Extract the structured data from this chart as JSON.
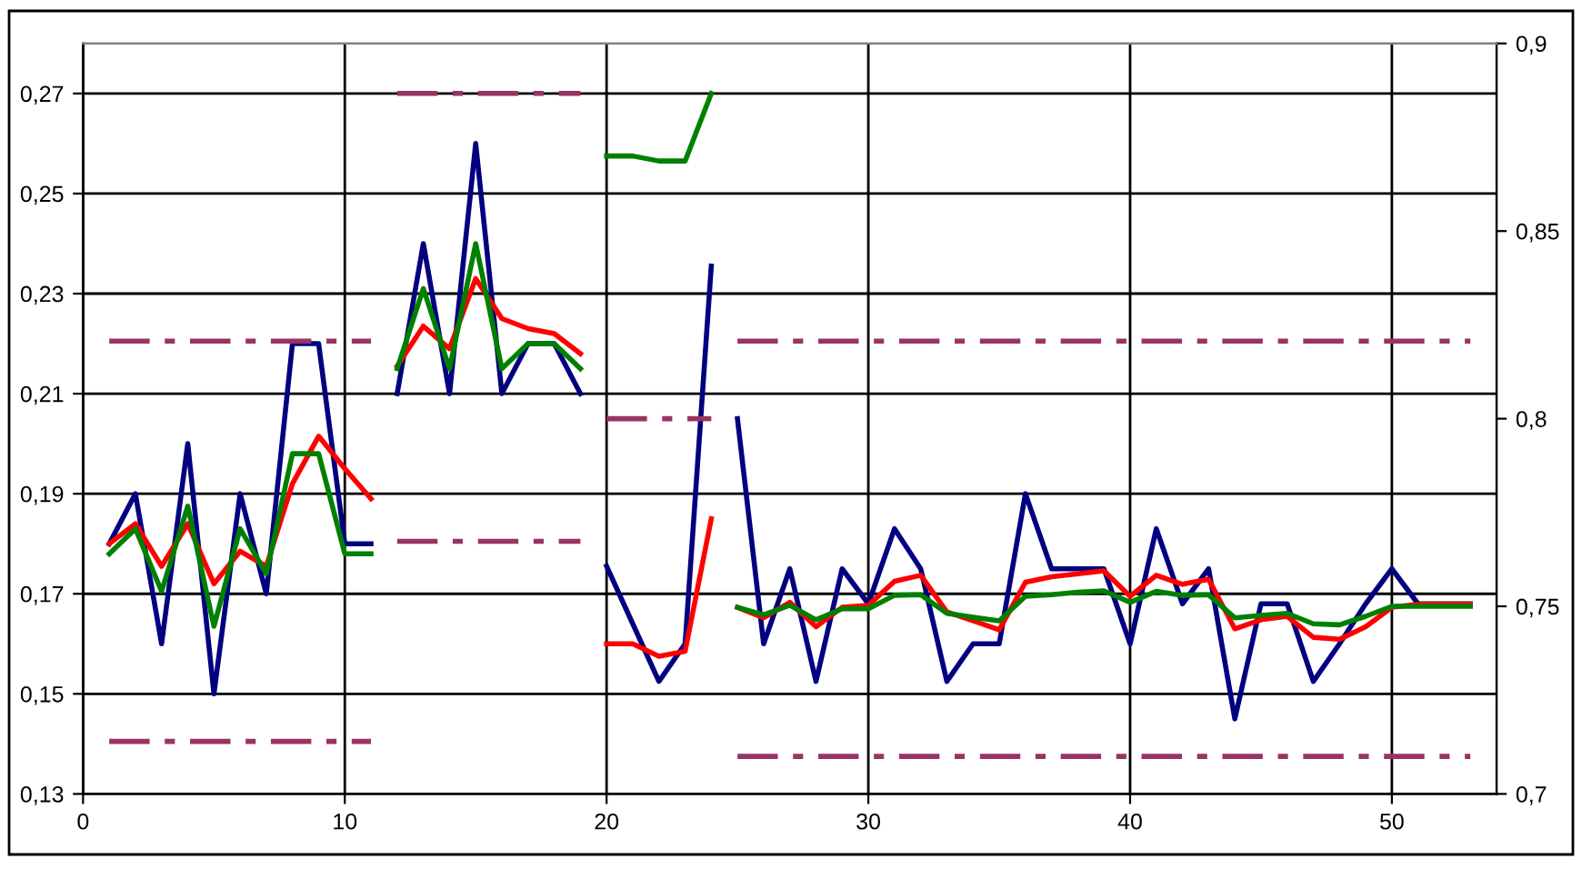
{
  "chart_data": {
    "type": "line",
    "xlim": [
      0,
      54
    ],
    "xticks": [
      0,
      10,
      20,
      30,
      40,
      50
    ],
    "ylim": [
      0.13,
      0.28
    ],
    "yticks": [
      {
        "value": 0.13,
        "label": "0,13"
      },
      {
        "value": 0.15,
        "label": "0,15"
      },
      {
        "value": 0.17,
        "label": "0,17"
      },
      {
        "value": 0.19,
        "label": "0,19"
      },
      {
        "value": 0.21,
        "label": "0,21"
      },
      {
        "value": 0.23,
        "label": "0,23"
      },
      {
        "value": 0.25,
        "label": "0,25"
      },
      {
        "value": 0.27,
        "label": "0,27"
      }
    ],
    "y2lim": [
      0.7,
      0.9
    ],
    "y2ticks": [
      {
        "value": 0.7,
        "label": "0,7"
      },
      {
        "value": 0.75,
        "label": "0,75"
      },
      {
        "value": 0.8,
        "label": "0,8"
      },
      {
        "value": 0.85,
        "label": "0,85"
      },
      {
        "value": 0.9,
        "label": "0,9"
      }
    ],
    "grid": true,
    "legend": false,
    "marker": "none",
    "series": [
      {
        "color": "#000080",
        "x": [
          1,
          2,
          3,
          4,
          5,
          6,
          7,
          8,
          9,
          10,
          11
        ],
        "values": [
          0.18,
          0.19,
          0.16,
          0.2,
          0.15,
          0.19,
          0.17,
          0.22,
          0.22,
          0.18,
          0.18
        ]
      },
      {
        "color": "#ff0000",
        "x": [
          1,
          2,
          3,
          4,
          5,
          6,
          7,
          8,
          9,
          10,
          11
        ],
        "values": [
          0.18,
          0.184,
          0.1755,
          0.184,
          0.172,
          0.1785,
          0.1755,
          0.192,
          0.2015,
          0.195,
          0.189
        ]
      },
      {
        "color": "#008000",
        "x": [
          1,
          2,
          3,
          4,
          5,
          6,
          7,
          8,
          9,
          10,
          11
        ],
        "values": [
          0.178,
          0.183,
          0.1705,
          0.1875,
          0.1635,
          0.183,
          0.174,
          0.198,
          0.198,
          0.178,
          0.178
        ]
      },
      {
        "color": "#000080",
        "x": [
          12,
          13,
          14,
          15,
          16,
          17,
          18,
          19
        ],
        "values": [
          0.21,
          0.24,
          0.21,
          0.26,
          0.21,
          0.22,
          0.22,
          0.21
        ]
      },
      {
        "color": "#ff0000",
        "x": [
          12,
          13,
          14,
          15,
          16,
          17,
          18,
          19
        ],
        "values": [
          0.2155,
          0.2235,
          0.219,
          0.233,
          0.225,
          0.223,
          0.222,
          0.218
        ]
      },
      {
        "color": "#008000",
        "x": [
          12,
          13,
          14,
          15,
          16,
          17,
          18,
          19
        ],
        "values": [
          0.215,
          0.231,
          0.215,
          0.24,
          0.215,
          0.22,
          0.22,
          0.215
        ]
      },
      {
        "color": "#000080",
        "x": [
          20,
          21,
          22,
          23,
          24
        ],
        "values": [
          0.1755,
          0.164,
          0.1525,
          0.16,
          0.2355
        ]
      },
      {
        "color": "#ff0000",
        "x": [
          20,
          21,
          22,
          23,
          24
        ],
        "values": [
          0.16,
          0.16,
          0.1575,
          0.1585,
          0.185
        ]
      },
      {
        "color": "#008000",
        "x": [
          20,
          21,
          22,
          23,
          24
        ],
        "values": [
          0.2575,
          0.2575,
          0.2565,
          0.2565,
          0.27
        ]
      },
      {
        "color": "#000080",
        "x": [
          25,
          26,
          27,
          28,
          29,
          30,
          31,
          32,
          33,
          34,
          35,
          36,
          37,
          38,
          39,
          40,
          41,
          42,
          43,
          44,
          45,
          46,
          47,
          48,
          49,
          50,
          51,
          52,
          53
        ],
        "values": [
          0.205,
          0.16,
          0.175,
          0.1525,
          0.175,
          0.168,
          0.183,
          0.175,
          0.1525,
          0.16,
          0.16,
          0.19,
          0.175,
          0.175,
          0.175,
          0.16,
          0.183,
          0.168,
          0.175,
          0.145,
          0.168,
          0.168,
          0.1525,
          0.16,
          0.168,
          0.175,
          0.168,
          0.168,
          0.168
        ]
      },
      {
        "color": "#ff0000",
        "x": [
          25,
          26,
          27,
          28,
          29,
          30,
          31,
          32,
          33,
          34,
          35,
          36,
          37,
          38,
          39,
          40,
          41,
          42,
          43,
          44,
          45,
          46,
          47,
          48,
          49,
          50,
          51,
          52,
          53
        ],
        "values": [
          0.1673,
          0.1652,
          0.1683,
          0.1634,
          0.1673,
          0.1677,
          0.1725,
          0.1737,
          0.1664,
          0.1646,
          0.1628,
          0.1723,
          0.1734,
          0.174,
          0.1746,
          0.1695,
          0.1737,
          0.1719,
          0.1729,
          0.163,
          0.1648,
          0.1655,
          0.1613,
          0.1609,
          0.1634,
          0.1673,
          0.1679,
          0.1679,
          0.1679
        ]
      },
      {
        "color": "#008000",
        "x": [
          25,
          26,
          27,
          28,
          29,
          30,
          31,
          32,
          33,
          34,
          35,
          36,
          37,
          38,
          39,
          40,
          41,
          42,
          43,
          44,
          45,
          46,
          47,
          48,
          49,
          50,
          51,
          52,
          53
        ],
        "values": [
          0.1673,
          0.1658,
          0.1677,
          0.1648,
          0.167,
          0.167,
          0.1697,
          0.1698,
          0.1661,
          0.1653,
          0.1646,
          0.1695,
          0.1698,
          0.1703,
          0.1706,
          0.1683,
          0.1705,
          0.1697,
          0.1698,
          0.1652,
          0.1657,
          0.1661,
          0.164,
          0.1638,
          0.1655,
          0.1675,
          0.1675,
          0.1675,
          0.1675
        ]
      },
      {
        "color": "#993366",
        "line_style": "dashed",
        "x": [
          1,
          11
        ],
        "values": [
          0.2205,
          0.2205
        ]
      },
      {
        "color": "#993366",
        "line_style": "dashed",
        "x": [
          1,
          11
        ],
        "values": [
          0.1405,
          0.1405
        ]
      },
      {
        "color": "#993366",
        "line_style": "dashed",
        "x": [
          12,
          19
        ],
        "values": [
          0.27,
          0.27
        ]
      },
      {
        "color": "#993366",
        "line_style": "dashed",
        "x": [
          12,
          19
        ],
        "values": [
          0.1805,
          0.1805
        ]
      },
      {
        "color": "#993366",
        "line_style": "dashed",
        "x": [
          20,
          24
        ],
        "values": [
          0.205,
          0.205
        ]
      },
      {
        "color": "#993366",
        "line_style": "dashed",
        "x": [
          25,
          53
        ],
        "values": [
          0.2205,
          0.2205
        ]
      },
      {
        "color": "#993366",
        "line_style": "dashed",
        "x": [
          25,
          53
        ],
        "values": [
          0.1375,
          0.1375
        ]
      }
    ]
  }
}
